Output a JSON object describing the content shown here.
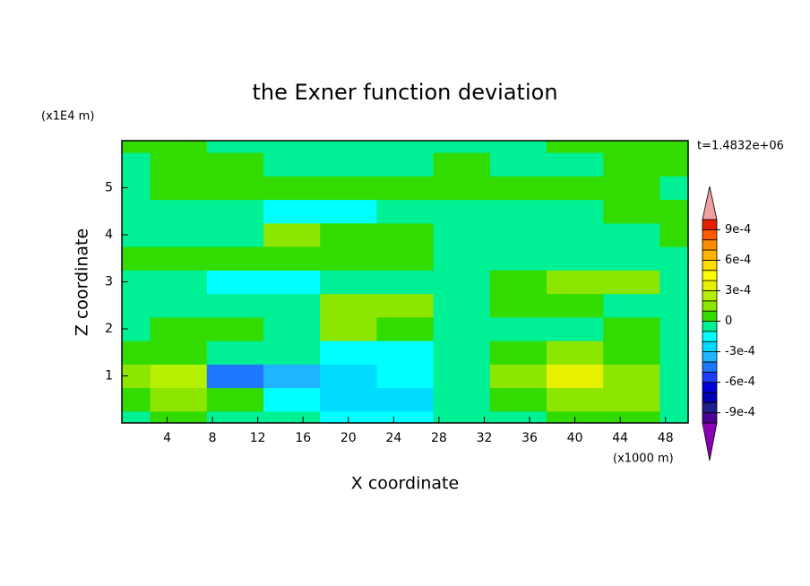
{
  "chart_data": {
    "type": "contour",
    "title": "the Exner function deviation",
    "xlabel": "X coordinate",
    "ylabel": "Z coordinate",
    "x_unit_label": "(x1000 m)",
    "y_unit_label": "(x1E4 m)",
    "time_label": "t=1.4832e+06",
    "xlim": [
      0,
      50
    ],
    "ylim": [
      0,
      6
    ],
    "xticks": [
      4,
      8,
      12,
      16,
      20,
      24,
      28,
      32,
      36,
      40,
      44,
      48
    ],
    "yticks": [
      1,
      2,
      3,
      4,
      5
    ],
    "x": [
      0,
      5,
      10,
      15,
      20,
      25,
      30,
      35,
      40,
      45,
      50
    ],
    "z": [
      0,
      0.5,
      1,
      1.5,
      2,
      2.5,
      3,
      3.5,
      4,
      4.5,
      5,
      5.5,
      6
    ],
    "values": [
      [
        -5e-05,
        5e-05,
        -5e-05,
        -5e-05,
        -0.00015,
        -0.00015,
        -5e-05,
        -5e-05,
        5e-05,
        5e-05,
        -5e-05
      ],
      [
        5e-05,
        0.00015,
        5e-05,
        -0.00015,
        -0.00025,
        -0.00025,
        -5e-05,
        5e-05,
        0.00015,
        0.00015,
        -5e-05
      ],
      [
        0.00015,
        0.00025,
        -0.00045,
        -0.00035,
        -0.00025,
        -0.00015,
        -5e-05,
        0.00015,
        0.00035,
        0.00015,
        -5e-05
      ],
      [
        5e-05,
        5e-05,
        -5e-05,
        -5e-05,
        -0.00015,
        -0.00015,
        -5e-05,
        5e-05,
        0.00015,
        5e-05,
        -5e-05
      ],
      [
        -5e-05,
        5e-05,
        5e-05,
        -5e-05,
        0.00015,
        5e-05,
        -5e-05,
        -5e-05,
        -5e-05,
        5e-05,
        -5e-05
      ],
      [
        -5e-05,
        -5e-05,
        -5e-05,
        -5e-05,
        0.00015,
        0.00015,
        -5e-05,
        5e-05,
        5e-05,
        -5e-05,
        -5e-05
      ],
      [
        -5e-05,
        -5e-05,
        -0.00015,
        -0.00015,
        -5e-05,
        -5e-05,
        -5e-05,
        5e-05,
        0.00015,
        0.00015,
        -5e-05
      ],
      [
        5e-05,
        5e-05,
        5e-05,
        5e-05,
        5e-05,
        5e-05,
        -5e-05,
        -5e-05,
        -5e-05,
        -5e-05,
        -5e-05
      ],
      [
        -5e-05,
        -5e-05,
        -5e-05,
        0.00015,
        5e-05,
        5e-05,
        -5e-05,
        -5e-05,
        -5e-05,
        -5e-05,
        5e-05
      ],
      [
        -5e-05,
        -5e-05,
        -5e-05,
        -0.00015,
        -0.00015,
        -5e-05,
        -5e-05,
        -5e-05,
        -5e-05,
        5e-05,
        5e-05
      ],
      [
        -5e-05,
        5e-05,
        5e-05,
        5e-05,
        5e-05,
        5e-05,
        5e-05,
        5e-05,
        5e-05,
        5e-05,
        -5e-05
      ],
      [
        -5e-05,
        5e-05,
        5e-05,
        -5e-05,
        -5e-05,
        -5e-05,
        5e-05,
        -5e-05,
        -5e-05,
        5e-05,
        5e-05
      ],
      [
        5e-05,
        5e-05,
        -5e-05,
        -5e-05,
        -5e-05,
        -5e-05,
        -5e-05,
        -5e-05,
        5e-05,
        5e-05,
        5e-05
      ]
    ],
    "levels": [
      -0.001,
      -0.0009,
      -0.0008,
      -0.0007,
      -0.0006,
      -0.0005,
      -0.0004,
      -0.0003,
      -0.0002,
      -0.0001,
      0,
      0.0001,
      0.0002,
      0.0003,
      0.0004,
      0.0005,
      0.0006,
      0.0007,
      0.0008,
      0.0009,
      0.001
    ],
    "colors": [
      "#8c00b4",
      "#4b0096",
      "#1e1e8c",
      "#0000b4",
      "#0000dc",
      "#1e3cff",
      "#1e78ff",
      "#1eb4ff",
      "#00dcff",
      "#00ffff",
      "#00f096",
      "#32dc00",
      "#8ce600",
      "#b4f000",
      "#e6f000",
      "#ffff00",
      "#ffdc00",
      "#ffb400",
      "#ff8c00",
      "#ff5a00",
      "#e61e00",
      "#f0a0a0"
    ],
    "colorbar_ticks": [
      {
        "value": 0.0009,
        "label": "9e-4"
      },
      {
        "value": 0.0006,
        "label": "6e-4"
      },
      {
        "value": 0.0003,
        "label": "3e-4"
      },
      0,
      {
        "value": -0.0003,
        "label": "-3e-4"
      },
      {
        "value": -0.0006,
        "label": "-6e-4"
      },
      {
        "value": -0.0009,
        "label": "-9e-4"
      }
    ]
  }
}
